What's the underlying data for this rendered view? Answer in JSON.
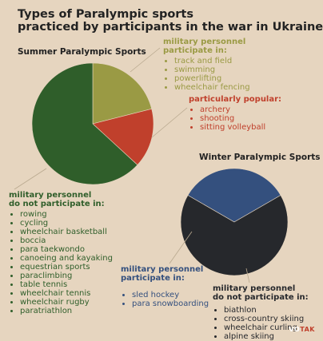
{
  "title_line1": "Types of Paralympic sports",
  "title_line2": "practiced by participants in the war in Ukraine",
  "summer": {
    "heading": "Summer Paralympic Sports",
    "participate_title_1": "military personnel",
    "participate_title_2": "participate in:",
    "participate": [
      "track and field",
      "swimming",
      "powerlifting",
      "wheelchair fencing"
    ],
    "popular_title": "particularly popular:",
    "popular": [
      "archery",
      "shooting",
      "sitting volleyball"
    ],
    "not_title_1": "military personnel",
    "not_title_2": "do not participate in:",
    "not_participate": [
      "rowing",
      "cycling",
      "wheelchair basketball",
      "boccia",
      "para taekwondo",
      "canoeing and kayaking",
      "equestrian sports",
      "paraclimbing",
      "table tennis",
      "wheelchair tennis",
      "wheelchair rugby",
      "paratriathlon"
    ]
  },
  "winter": {
    "heading": "Winter Paralympic Sports",
    "participate_title_1": "military personnel",
    "participate_title_2": "participate in:",
    "participate": [
      "sled hockey",
      "para snowboarding"
    ],
    "not_title_1": "military personnel",
    "not_title_2": "do not participate in:",
    "not_participate": [
      "biathlon",
      "cross-country skiing",
      "wheelchair curling",
      "alpine skiing"
    ]
  },
  "logo": {
    "vo": "VO",
    "tak": "TAK"
  },
  "colors": {
    "background": "#e6d5bf",
    "olive": "#9a9a44",
    "rust": "#c0402c",
    "green": "#2f5e2a",
    "navy": "#34507e",
    "dark": "#26282c"
  },
  "chart_data": [
    {
      "type": "pie",
      "title": "Summer Paralympic Sports",
      "categories": [
        "military personnel participate in",
        "particularly popular",
        "military personnel do not participate in"
      ],
      "values": [
        4,
        3,
        12
      ],
      "colors": [
        "#9a9a44",
        "#c0402c",
        "#2f5e2a"
      ]
    },
    {
      "type": "pie",
      "title": "Winter Paralympic Sports",
      "categories": [
        "military personnel participate in",
        "military personnel do not participate in"
      ],
      "values": [
        2,
        4
      ],
      "colors": [
        "#34507e",
        "#26282c"
      ]
    }
  ]
}
